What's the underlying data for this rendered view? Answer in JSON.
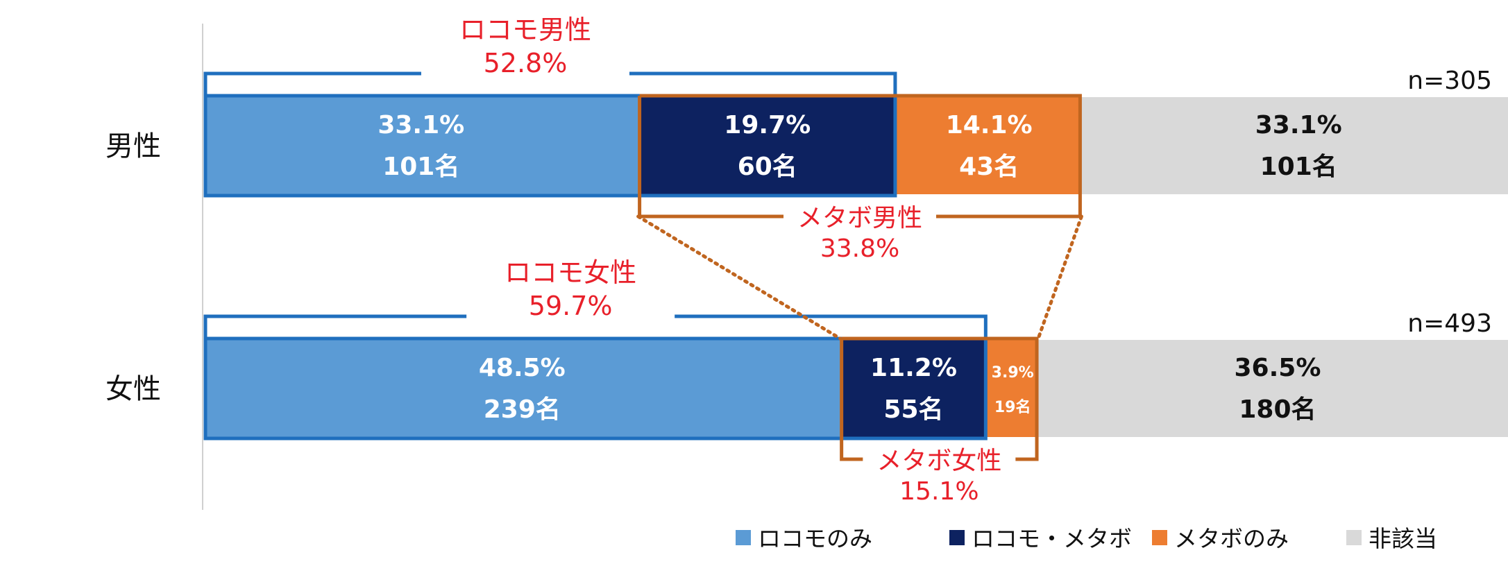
{
  "chart_data": {
    "type": "bar",
    "stacked": true,
    "orientation": "horizontal",
    "categories": [
      "男性",
      "女性"
    ],
    "n_labels": [
      "n=305",
      "n=493"
    ],
    "series": [
      {
        "name": "ロコモのみ",
        "color": "#5B9BD5",
        "text_color": "#ffffff",
        "values": [
          33.1,
          48.5
        ],
        "percent_labels": [
          "33.1%",
          "48.5%"
        ],
        "count_labels": [
          "101名",
          "239名"
        ]
      },
      {
        "name": "ロコモ・メタボ",
        "color": "#0D2260",
        "text_color": "#ffffff",
        "values": [
          19.7,
          11.2
        ],
        "percent_labels": [
          "19.7%",
          "11.2%"
        ],
        "count_labels": [
          "60名",
          "55名"
        ]
      },
      {
        "name": "メタボのみ",
        "color": "#ED7D31",
        "text_color": "#ffffff",
        "values": [
          14.1,
          3.9
        ],
        "percent_labels": [
          "14.1%",
          "3.9%"
        ],
        "count_labels": [
          "43名",
          "19名"
        ]
      },
      {
        "name": "非該当",
        "color": "#D9D9D9",
        "text_color": "#111111",
        "values": [
          33.1,
          36.5
        ],
        "percent_labels": [
          "33.1%",
          "36.5%"
        ],
        "count_labels": [
          "101名",
          "180名"
        ]
      }
    ],
    "annotations": [
      {
        "group": "locomo",
        "row": 0,
        "name": "ロコモ男性",
        "value": "52.8%",
        "color": "#1F6FBE"
      },
      {
        "group": "metabo",
        "row": 0,
        "name": "メタボ男性",
        "value": "33.8%",
        "color": "#C0651F"
      },
      {
        "group": "locomo",
        "row": 1,
        "name": "ロコモ女性",
        "value": "59.7%",
        "color": "#1F6FBE"
      },
      {
        "group": "metabo",
        "row": 1,
        "name": "メタボ女性",
        "value": "15.1%",
        "color": "#C0651F"
      }
    ],
    "annotation_text_color": "#E8202A",
    "xlim": [
      0,
      100
    ],
    "legend_position": "bottom"
  }
}
